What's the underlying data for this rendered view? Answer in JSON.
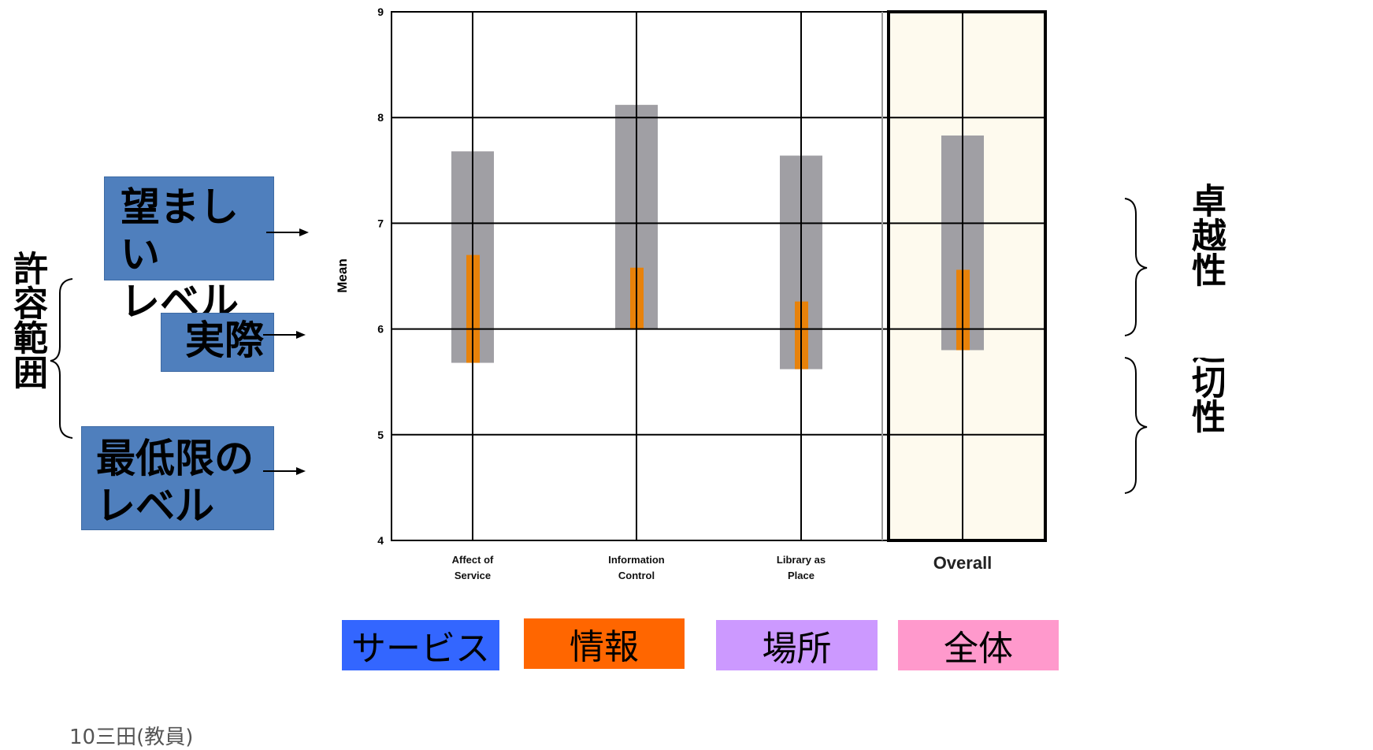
{
  "labels": {
    "desired": "望ましい\nレベル",
    "actual": "実際",
    "minimum": "最低限の\nレベル",
    "tolerance_zone": "許容範囲",
    "superiority": "卓越性",
    "adequacy": "適切性"
  },
  "legend": [
    {
      "label": "サービス",
      "color": "#3366ff"
    },
    {
      "label": "情報",
      "color": "#ff6600"
    },
    {
      "label": "場所",
      "color": "#cc99ff"
    },
    {
      "label": "全体",
      "color": "#ff99cc"
    }
  ],
  "footer": "10三田(教員)",
  "chart_data": {
    "type": "bar",
    "ylabel": "Mean",
    "ylim": [
      4,
      9
    ],
    "yticks": [
      "4",
      "5",
      "6",
      "7",
      "8",
      "9"
    ],
    "grid": true,
    "categories": [
      "Affect of\nService",
      "Information\nControl",
      "Library as\nPlace",
      "Overall"
    ],
    "series": [
      {
        "values": [
          5.68,
          6.0,
          5.62,
          5.8
        ],
        "color": "#a09fa4"
      },
      {
        "values": [
          7.68,
          8.12,
          7.64,
          7.83
        ],
        "color": "#a09fa4"
      },
      {
        "values": [
          6.7,
          6.58,
          6.26,
          6.56
        ],
        "color": "#e8820a"
      }
    ],
    "highlight_category": "Overall",
    "highlight_color": "#fefaee"
  }
}
